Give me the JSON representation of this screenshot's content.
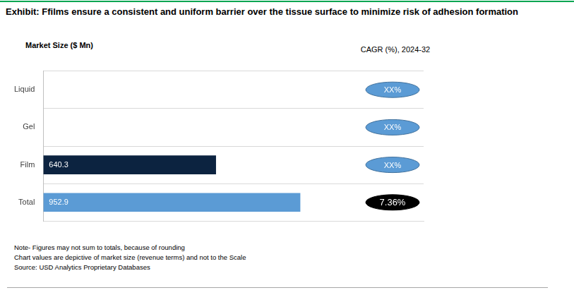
{
  "chart_data": {
    "type": "bar",
    "title": "Exhibit: Ffilms ensure a consistent and uniform barrier over the tissue surface to minimize risk of adhesion formation",
    "x_label": "Market Size ($ Mn)",
    "orientation": "horizontal",
    "categories": [
      "Liquid",
      "Gel",
      "Film",
      "Total"
    ],
    "values": [
      null,
      null,
      640.3,
      952.9
    ],
    "colors": [
      "#0c2340",
      "#0c2340",
      "#0c2340",
      "#5b9bd5"
    ],
    "xlim": [
      0,
      1410
    ],
    "grid": true,
    "data_labels": true,
    "tick_labels": "y",
    "legend": false,
    "cagr": {
      "title": "CAGR (%), 2024-32",
      "values": [
        null,
        null,
        null,
        7.36
      ],
      "value_labels": [
        "XX%",
        "XX%",
        "XX%",
        "7.36%"
      ],
      "colors": [
        "#5b9bd5",
        "#5b9bd5",
        "#5b9bd5",
        "#000000"
      ]
    },
    "notes": [
      "Note- Figures may not sum to totals, because of rounding",
      "Chart values are depictive of market size (revenue terms) and not to the Scale",
      "Source: USD Analytics Proprietary Databases"
    ]
  }
}
